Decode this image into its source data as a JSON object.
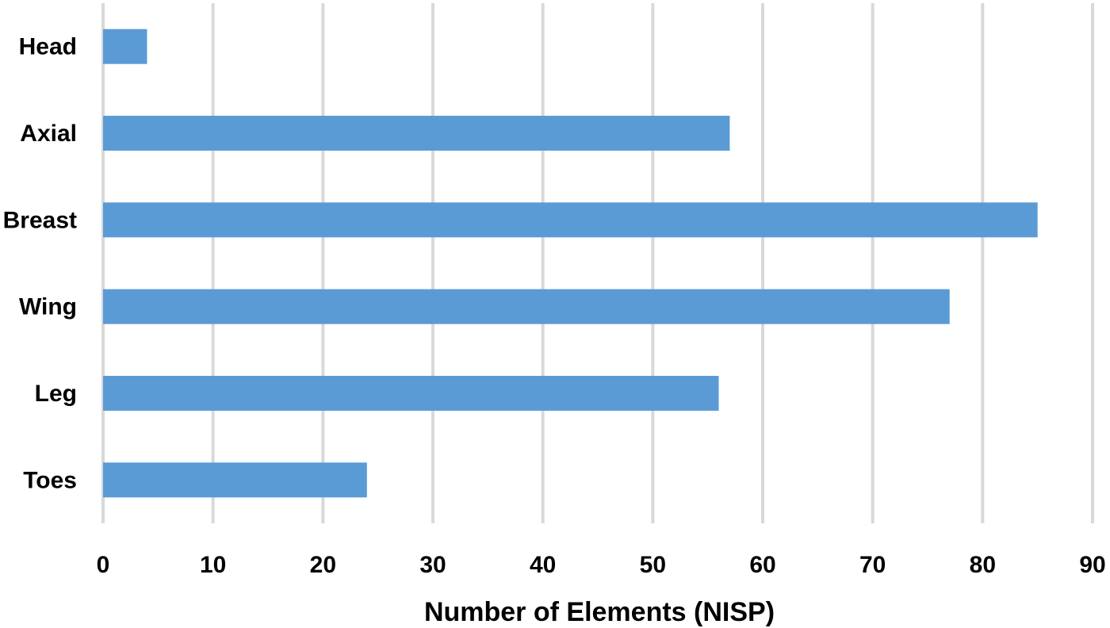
{
  "chart_data": {
    "type": "bar",
    "orientation": "horizontal",
    "categories": [
      "Head",
      "Axial",
      "Breast",
      "Wing",
      "Leg",
      "Toes"
    ],
    "values": [
      4,
      57,
      85,
      77,
      56,
      24
    ],
    "xlabel": "Number of Elements (NISP)",
    "ylabel": "",
    "xlim": [
      0,
      90
    ],
    "xticks": [
      "0",
      "10",
      "20",
      "30",
      "40",
      "50",
      "60",
      "70",
      "80",
      "90"
    ],
    "grid": "vertical",
    "legend": "none",
    "bar_color": "#5b9bd5",
    "grid_color": "#d9d9d9"
  }
}
